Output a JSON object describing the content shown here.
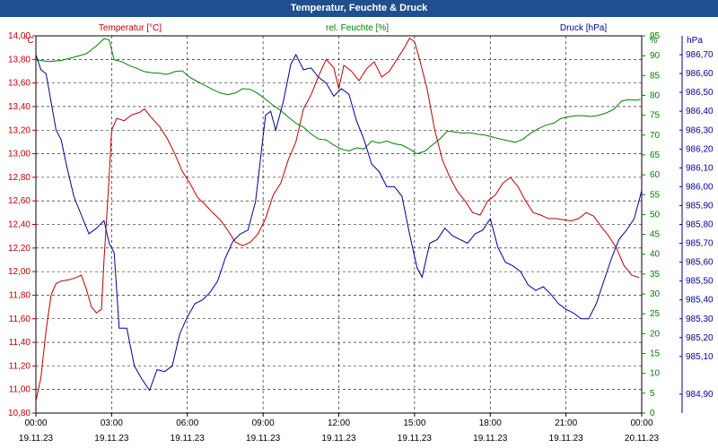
{
  "window": {
    "title": "Temperatur, Feuchte & Druck"
  },
  "colors": {
    "temperature": "#c00000",
    "humidity": "#008000",
    "pressure": "#000099",
    "titlebar": "#1f4f8e",
    "grid": "#000000"
  },
  "chart_data": {
    "type": "line",
    "title": "Temperatur, Feuchte & Druck",
    "grid": true,
    "x_axis": {
      "range_hours": [
        0,
        24
      ],
      "ticks": [
        {
          "h": 0,
          "time": "00:00",
          "date": "19.11.23"
        },
        {
          "h": 3,
          "time": "03:00",
          "date": "19.11.23"
        },
        {
          "h": 6,
          "time": "06:00",
          "date": "19.11.23"
        },
        {
          "h": 9,
          "time": "09:00",
          "date": "19.11.23"
        },
        {
          "h": 12,
          "time": "12:00",
          "date": "19.11.23"
        },
        {
          "h": 15,
          "time": "15:00",
          "date": "19.11.23"
        },
        {
          "h": 18,
          "time": "18:00",
          "date": "19.11.23"
        },
        {
          "h": 21,
          "time": "21:00",
          "date": "19.11.23"
        },
        {
          "h": 24,
          "time": "00:00",
          "date": "20.11.23"
        }
      ]
    },
    "axes": {
      "temperature": {
        "unit": "°C",
        "min": 10.8,
        "max": 14.0,
        "ticks": [
          "10,80",
          "11,00",
          "11,20",
          "11,40",
          "11,60",
          "11,80",
          "12,00",
          "12,20",
          "12,40",
          "12,60",
          "12,80",
          "13,00",
          "13,20",
          "13,40",
          "13,60",
          "13,80",
          "14,00"
        ]
      },
      "humidity": {
        "unit": "%",
        "min": 0,
        "max": 95,
        "ticks": [
          "0",
          "5",
          "10",
          "15",
          "20",
          "25",
          "30",
          "35",
          "40",
          "45",
          "50",
          "55",
          "60",
          "65",
          "70",
          "75",
          "80",
          "85",
          "90",
          "95"
        ]
      },
      "pressure": {
        "unit": "hPa",
        "min": 984.8,
        "max": 986.8,
        "ticks": [
          "984,90",
          "985,10",
          "985,20",
          "985,30",
          "985,40",
          "985,50",
          "985,60",
          "985,70",
          "985,80",
          "985,90",
          "986,00",
          "986,10",
          "986,20",
          "986,30",
          "986,40",
          "986,50",
          "986,60",
          "986,70"
        ]
      }
    },
    "series": [
      {
        "name": "Temperatur [°C]",
        "axis": "temperature",
        "color": "#c00000",
        "points": [
          [
            0,
            10.9
          ],
          [
            0.2,
            11.1
          ],
          [
            0.4,
            11.5
          ],
          [
            0.6,
            11.8
          ],
          [
            0.8,
            11.9
          ],
          [
            1.0,
            11.92
          ],
          [
            1.3,
            11.93
          ],
          [
            1.6,
            11.95
          ],
          [
            1.8,
            11.97
          ],
          [
            2.0,
            11.85
          ],
          [
            2.2,
            11.7
          ],
          [
            2.4,
            11.65
          ],
          [
            2.6,
            11.68
          ],
          [
            2.7,
            12.1
          ],
          [
            2.9,
            12.8
          ],
          [
            3.0,
            13.2
          ],
          [
            3.2,
            13.3
          ],
          [
            3.5,
            13.28
          ],
          [
            3.8,
            13.33
          ],
          [
            4.1,
            13.35
          ],
          [
            4.3,
            13.38
          ],
          [
            4.6,
            13.3
          ],
          [
            4.9,
            13.23
          ],
          [
            5.2,
            13.13
          ],
          [
            5.5,
            13.0
          ],
          [
            5.8,
            12.85
          ],
          [
            6.1,
            12.75
          ],
          [
            6.4,
            12.63
          ],
          [
            6.7,
            12.57
          ],
          [
            7.0,
            12.5
          ],
          [
            7.3,
            12.44
          ],
          [
            7.6,
            12.35
          ],
          [
            7.9,
            12.25
          ],
          [
            8.2,
            12.22
          ],
          [
            8.5,
            12.25
          ],
          [
            8.8,
            12.32
          ],
          [
            9.1,
            12.45
          ],
          [
            9.4,
            12.65
          ],
          [
            9.7,
            12.75
          ],
          [
            10.0,
            12.95
          ],
          [
            10.3,
            13.1
          ],
          [
            10.6,
            13.38
          ],
          [
            10.9,
            13.5
          ],
          [
            11.2,
            13.66
          ],
          [
            11.5,
            13.8
          ],
          [
            11.8,
            13.73
          ],
          [
            12.0,
            13.55
          ],
          [
            12.2,
            13.75
          ],
          [
            12.5,
            13.7
          ],
          [
            12.8,
            13.62
          ],
          [
            13.1,
            13.72
          ],
          [
            13.4,
            13.78
          ],
          [
            13.7,
            13.65
          ],
          [
            14.0,
            13.7
          ],
          [
            14.3,
            13.8
          ],
          [
            14.6,
            13.9
          ],
          [
            14.8,
            13.98
          ],
          [
            15.0,
            13.95
          ],
          [
            15.2,
            13.8
          ],
          [
            15.5,
            13.55
          ],
          [
            15.8,
            13.2
          ],
          [
            16.1,
            12.95
          ],
          [
            16.4,
            12.8
          ],
          [
            16.7,
            12.68
          ],
          [
            17.0,
            12.6
          ],
          [
            17.3,
            12.5
          ],
          [
            17.6,
            12.48
          ],
          [
            17.9,
            12.6
          ],
          [
            18.2,
            12.65
          ],
          [
            18.5,
            12.75
          ],
          [
            18.8,
            12.8
          ],
          [
            19.1,
            12.72
          ],
          [
            19.4,
            12.6
          ],
          [
            19.7,
            12.5
          ],
          [
            20.0,
            12.48
          ],
          [
            20.3,
            12.45
          ],
          [
            20.6,
            12.45
          ],
          [
            20.9,
            12.44
          ],
          [
            21.2,
            12.43
          ],
          [
            21.5,
            12.45
          ],
          [
            21.8,
            12.5
          ],
          [
            22.1,
            12.47
          ],
          [
            22.4,
            12.38
          ],
          [
            22.7,
            12.3
          ],
          [
            23.0,
            12.2
          ],
          [
            23.3,
            12.05
          ],
          [
            23.6,
            11.97
          ],
          [
            23.9,
            11.95
          ]
        ]
      },
      {
        "name": "rel. Feuchte [%]",
        "axis": "humidity",
        "color": "#008000",
        "points": [
          [
            0,
            89
          ],
          [
            0.5,
            88.5
          ],
          [
            1.0,
            88.8
          ],
          [
            1.5,
            89.6
          ],
          [
            2.0,
            90.5
          ],
          [
            2.4,
            92.5
          ],
          [
            2.7,
            94.3
          ],
          [
            2.9,
            94
          ],
          [
            3.1,
            89
          ],
          [
            3.4,
            88.5
          ],
          [
            3.7,
            87.5
          ],
          [
            4.0,
            86.8
          ],
          [
            4.3,
            86
          ],
          [
            4.6,
            85.7
          ],
          [
            4.9,
            85.6
          ],
          [
            5.2,
            85.3
          ],
          [
            5.5,
            86
          ],
          [
            5.8,
            86.2
          ],
          [
            6.1,
            84.5
          ],
          [
            6.4,
            83.5
          ],
          [
            6.7,
            82.5
          ],
          [
            7.0,
            81.5
          ],
          [
            7.3,
            80.6
          ],
          [
            7.6,
            80.2
          ],
          [
            7.9,
            80.6
          ],
          [
            8.2,
            81.7
          ],
          [
            8.5,
            81.5
          ],
          [
            8.8,
            80.5
          ],
          [
            9.1,
            79
          ],
          [
            9.4,
            77.5
          ],
          [
            9.7,
            76.2
          ],
          [
            10.0,
            74.5
          ],
          [
            10.3,
            73
          ],
          [
            10.6,
            72
          ],
          [
            10.9,
            70.3
          ],
          [
            11.2,
            69
          ],
          [
            11.5,
            68.8
          ],
          [
            11.8,
            67.5
          ],
          [
            12.1,
            66.5
          ],
          [
            12.4,
            66
          ],
          [
            12.7,
            66.8
          ],
          [
            13.0,
            66.5
          ],
          [
            13.3,
            68.5
          ],
          [
            13.6,
            68
          ],
          [
            13.9,
            68.5
          ],
          [
            14.2,
            67.8
          ],
          [
            14.5,
            67.5
          ],
          [
            14.8,
            66.5
          ],
          [
            15.1,
            65.3
          ],
          [
            15.4,
            65.9
          ],
          [
            15.7,
            67.5
          ],
          [
            16.0,
            69
          ],
          [
            16.3,
            71
          ],
          [
            16.6,
            70.8
          ],
          [
            16.9,
            70.5
          ],
          [
            17.2,
            70.6
          ],
          [
            17.5,
            70.2
          ],
          [
            17.8,
            70
          ],
          [
            18.1,
            69.5
          ],
          [
            18.4,
            69
          ],
          [
            18.7,
            68.6
          ],
          [
            19.0,
            68.2
          ],
          [
            19.3,
            69
          ],
          [
            19.6,
            70.5
          ],
          [
            19.9,
            71.6
          ],
          [
            20.2,
            72.5
          ],
          [
            20.5,
            73
          ],
          [
            20.8,
            74.2
          ],
          [
            21.1,
            74.6
          ],
          [
            21.4,
            74.9
          ],
          [
            21.7,
            74.9
          ],
          [
            22.0,
            74.7
          ],
          [
            22.3,
            75
          ],
          [
            22.6,
            75.6
          ],
          [
            22.9,
            76.5
          ],
          [
            23.2,
            78.6
          ],
          [
            23.5,
            78.9
          ],
          [
            23.8,
            78.8
          ],
          [
            23.95,
            79
          ]
        ]
      },
      {
        "name": "Druck [hPa]",
        "axis": "pressure",
        "color": "#000099",
        "points": [
          [
            0,
            986.7
          ],
          [
            0.2,
            986.62
          ],
          [
            0.4,
            986.6
          ],
          [
            0.6,
            986.45
          ],
          [
            0.8,
            986.3
          ],
          [
            1.0,
            986.25
          ],
          [
            1.2,
            986.12
          ],
          [
            1.5,
            985.95
          ],
          [
            1.8,
            985.85
          ],
          [
            2.1,
            985.75
          ],
          [
            2.4,
            985.78
          ],
          [
            2.7,
            985.82
          ],
          [
            2.9,
            985.7
          ],
          [
            3.1,
            985.65
          ],
          [
            3.3,
            985.25
          ],
          [
            3.6,
            985.25
          ],
          [
            3.9,
            985.05
          ],
          [
            4.2,
            984.98
          ],
          [
            4.5,
            984.92
          ],
          [
            4.8,
            985.03
          ],
          [
            5.1,
            985.02
          ],
          [
            5.4,
            985.05
          ],
          [
            5.7,
            985.22
          ],
          [
            6.0,
            985.31
          ],
          [
            6.3,
            985.38
          ],
          [
            6.6,
            985.4
          ],
          [
            6.9,
            985.44
          ],
          [
            7.2,
            985.5
          ],
          [
            7.5,
            985.62
          ],
          [
            7.8,
            985.71
          ],
          [
            8.1,
            985.75
          ],
          [
            8.4,
            985.77
          ],
          [
            8.7,
            985.92
          ],
          [
            8.9,
            986.15
          ],
          [
            9.1,
            986.38
          ],
          [
            9.3,
            986.4
          ],
          [
            9.5,
            986.3
          ],
          [
            9.8,
            986.45
          ],
          [
            10.1,
            986.65
          ],
          [
            10.3,
            986.7
          ],
          [
            10.6,
            986.62
          ],
          [
            10.9,
            986.63
          ],
          [
            11.2,
            986.58
          ],
          [
            11.5,
            986.55
          ],
          [
            11.8,
            986.48
          ],
          [
            12.1,
            986.52
          ],
          [
            12.4,
            986.49
          ],
          [
            12.7,
            986.35
          ],
          [
            13.0,
            986.25
          ],
          [
            13.3,
            986.12
          ],
          [
            13.6,
            986.08
          ],
          [
            13.9,
            986.0
          ],
          [
            14.2,
            986.0
          ],
          [
            14.5,
            985.95
          ],
          [
            14.8,
            985.75
          ],
          [
            15.1,
            985.57
          ],
          [
            15.3,
            985.52
          ],
          [
            15.6,
            985.7
          ],
          [
            15.9,
            985.72
          ],
          [
            16.2,
            985.78
          ],
          [
            16.5,
            985.74
          ],
          [
            16.8,
            985.72
          ],
          [
            17.1,
            985.7
          ],
          [
            17.4,
            985.75
          ],
          [
            17.7,
            985.77
          ],
          [
            18.0,
            985.83
          ],
          [
            18.3,
            985.68
          ],
          [
            18.6,
            985.6
          ],
          [
            18.9,
            985.58
          ],
          [
            19.2,
            985.55
          ],
          [
            19.5,
            985.48
          ],
          [
            19.8,
            985.45
          ],
          [
            20.1,
            985.47
          ],
          [
            20.4,
            985.43
          ],
          [
            20.7,
            985.38
          ],
          [
            21.0,
            985.35
          ],
          [
            21.3,
            985.33
          ],
          [
            21.6,
            985.3
          ],
          [
            21.9,
            985.3
          ],
          [
            22.2,
            985.38
          ],
          [
            22.5,
            985.5
          ],
          [
            22.8,
            985.62
          ],
          [
            23.1,
            985.72
          ],
          [
            23.4,
            985.77
          ],
          [
            23.7,
            985.83
          ],
          [
            24.0,
            985.98
          ]
        ]
      }
    ]
  }
}
